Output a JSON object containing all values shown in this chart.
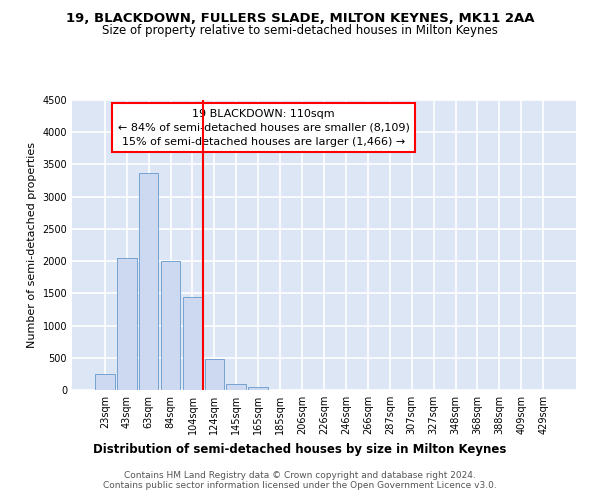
{
  "title1": "19, BLACKDOWN, FULLERS SLADE, MILTON KEYNES, MK11 2AA",
  "title2": "Size of property relative to semi-detached houses in Milton Keynes",
  "xlabel": "Distribution of semi-detached houses by size in Milton Keynes",
  "ylabel": "Number of semi-detached properties",
  "footnote": "Contains HM Land Registry data © Crown copyright and database right 2024.\nContains public sector information licensed under the Open Government Licence v3.0.",
  "categories": [
    "23sqm",
    "43sqm",
    "63sqm",
    "84sqm",
    "104sqm",
    "124sqm",
    "145sqm",
    "165sqm",
    "185sqm",
    "206sqm",
    "226sqm",
    "246sqm",
    "266sqm",
    "287sqm",
    "307sqm",
    "327sqm",
    "348sqm",
    "368sqm",
    "388sqm",
    "409sqm",
    "429sqm"
  ],
  "values": [
    250,
    2050,
    3375,
    2000,
    1450,
    475,
    100,
    50,
    0,
    0,
    0,
    0,
    0,
    0,
    0,
    0,
    0,
    0,
    0,
    0,
    0
  ],
  "bar_color": "#ccd9f0",
  "bar_edge_color": "#6699cc",
  "vline_color": "red",
  "annotation_line1": "19 BLACKDOWN: 110sqm",
  "annotation_line2": "← 84% of semi-detached houses are smaller (8,109)",
  "annotation_line3": "15% of semi-detached houses are larger (1,466) →",
  "annotation_box_color": "white",
  "annotation_box_edge": "red",
  "ylim": [
    0,
    4500
  ],
  "yticks": [
    0,
    500,
    1000,
    1500,
    2000,
    2500,
    3000,
    3500,
    4000,
    4500
  ],
  "background_color": "#dce6f5",
  "grid_color": "white",
  "title1_fontsize": 9.5,
  "title2_fontsize": 8.5,
  "xlabel_fontsize": 8.5,
  "ylabel_fontsize": 8,
  "tick_fontsize": 7,
  "annotation_fontsize": 8,
  "footnote_fontsize": 6.5
}
